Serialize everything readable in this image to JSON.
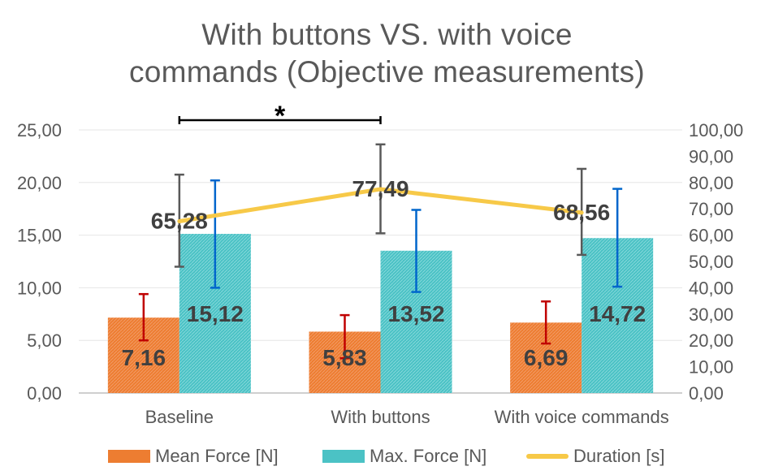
{
  "chart_data": {
    "type": "bar",
    "title": "With buttons VS. with voice commands (Objective measurements)",
    "title_lines": [
      "With buttons VS. with voice",
      "commands (Objective measurements)"
    ],
    "categories": [
      "Baseline",
      "With buttons",
      "With voice commands"
    ],
    "series": [
      {
        "name": "Mean Force [N]",
        "type": "bar",
        "axis": "left",
        "values": [
          7.16,
          5.83,
          6.69
        ],
        "labels": [
          "7,16",
          "5,83",
          "6,69"
        ],
        "error_low": [
          5.0,
          3.3,
          4.7
        ],
        "error_high": [
          9.4,
          7.4,
          8.7
        ],
        "color": "#ed7d31",
        "error_color": "#c00000"
      },
      {
        "name": "Max. Force [N]",
        "type": "bar",
        "axis": "left",
        "values": [
          15.12,
          13.52,
          14.72
        ],
        "labels": [
          "15,12",
          "13,52",
          "14,72"
        ],
        "error_low": [
          10.0,
          9.6,
          10.1
        ],
        "error_high": [
          20.2,
          17.4,
          19.4
        ],
        "color": "#4bc2c5",
        "error_color": "#0066cc"
      },
      {
        "name": "Duration [s]",
        "type": "line",
        "axis": "right",
        "values": [
          65.28,
          77.49,
          68.56
        ],
        "labels": [
          "65,28",
          "77,49",
          "68,56"
        ],
        "error_low": [
          48.0,
          60.7,
          52.5
        ],
        "error_high": [
          83.0,
          94.5,
          85.2
        ],
        "color": "#f7c948",
        "error_color": "#595959"
      }
    ],
    "y_left": {
      "ylim": [
        0,
        25
      ],
      "ticks": [
        "0,00",
        "5,00",
        "10,00",
        "15,00",
        "20,00",
        "25,00"
      ]
    },
    "y_right": {
      "ylim": [
        0,
        100
      ],
      "ticks": [
        "0,00",
        "10,00",
        "20,00",
        "30,00",
        "40,00",
        "50,00",
        "60,00",
        "70,00",
        "80,00",
        "90,00",
        "100,00"
      ]
    },
    "annotations": [
      {
        "text": "*",
        "from": "Baseline",
        "to": "With buttons"
      }
    ],
    "grid": true,
    "legend_position": "bottom"
  }
}
